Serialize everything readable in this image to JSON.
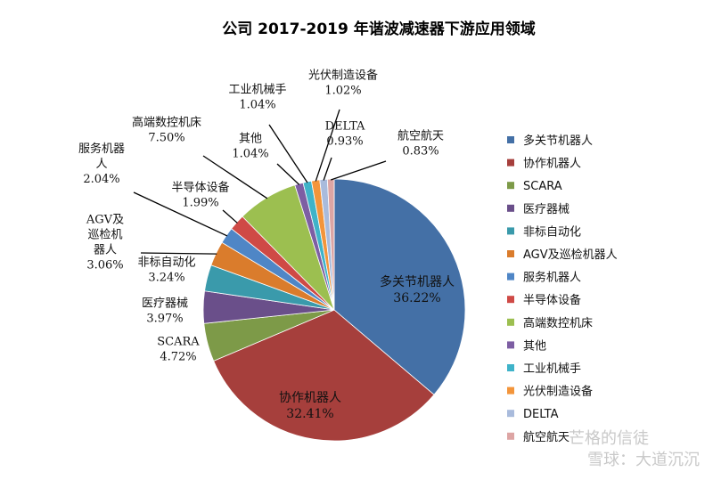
{
  "chart_data": {
    "type": "pie",
    "title": "公司 2017-2019 年谐波减速器下游应用领域",
    "slices": [
      {
        "name": "多关节机器人",
        "label_lines": [
          "多关节机器人"
        ],
        "value": 36.22,
        "value_label": "36.22%",
        "color": "#4470a6"
      },
      {
        "name": "协作机器人",
        "label_lines": [
          "协作机器人"
        ],
        "value": 32.41,
        "value_label": "32.41%",
        "color": "#a63f3c"
      },
      {
        "name": "SCARA",
        "label_lines": [
          "SCARA"
        ],
        "value": 4.72,
        "value_label": "4.72%",
        "color": "#7d9a48"
      },
      {
        "name": "医疗器械",
        "label_lines": [
          "医疗器械"
        ],
        "value": 3.97,
        "value_label": "3.97%",
        "color": "#6a4f8a"
      },
      {
        "name": "非标自动化",
        "label_lines": [
          "非标自动化"
        ],
        "value": 3.24,
        "value_label": "3.24%",
        "color": "#3a9aab"
      },
      {
        "name": "AGV及巡检机器人",
        "label_lines": [
          "AGV及",
          "巡检机",
          "器人"
        ],
        "value": 3.06,
        "value_label": "3.06%",
        "color": "#da7c2c"
      },
      {
        "name": "服务机器人",
        "label_lines": [
          "服务机器",
          "人"
        ],
        "value": 2.04,
        "value_label": "2.04%",
        "color": "#4f86c6"
      },
      {
        "name": "半导体设备",
        "label_lines": [
          "半导体设备"
        ],
        "value": 1.99,
        "value_label": "1.99%",
        "color": "#cf4a46"
      },
      {
        "name": "高端数控机床",
        "label_lines": [
          "高端数控机床"
        ],
        "value": 7.5,
        "value_label": "7.50%",
        "color": "#9cbf50"
      },
      {
        "name": "其他",
        "label_lines": [
          "其他"
        ],
        "value": 1.04,
        "value_label": "1.04%",
        "color": "#7d5ea3"
      },
      {
        "name": "工业机械手",
        "label_lines": [
          "工业机械手"
        ],
        "value": 1.04,
        "value_label": "1.04%",
        "color": "#3fb3c9"
      },
      {
        "name": "光伏制造设备",
        "label_lines": [
          "光伏制造设备"
        ],
        "value": 1.02,
        "value_label": "1.02%",
        "color": "#f3953b"
      },
      {
        "name": "DELTA",
        "label_lines": [
          "DELTA"
        ],
        "value": 0.93,
        "value_label": "0.93%",
        "color": "#a9bbdc"
      },
      {
        "name": "航空航天",
        "label_lines": [
          "航空航天"
        ],
        "value": 0.83,
        "value_label": "0.83%",
        "color": "#dda5a4"
      }
    ],
    "legend_position": "right",
    "start_angle_deg": 0,
    "direction": "clockwise"
  },
  "watermark": "雪球：大道沉沉",
  "watermark_overlay": "芒格的信徒"
}
